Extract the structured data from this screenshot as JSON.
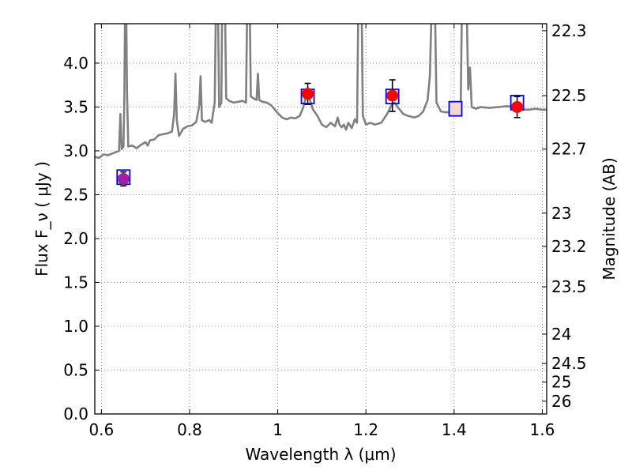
{
  "chart_data": {
    "type": "scatter",
    "title": "",
    "xlabel": "Wavelength  λ (μm)",
    "ylabel": "Flux  F_ν  ( μJy )",
    "ylabel_right": "Magnitude (AB)",
    "xlim": [
      0.585,
      1.61
    ],
    "ylim": [
      0.0,
      4.45
    ],
    "x_ticks": [
      0.6,
      0.8,
      1.0,
      1.2,
      1.4,
      1.6
    ],
    "x_tick_labels": [
      "0.6",
      "0.8",
      "1",
      "1.2",
      "1.4",
      "1.6"
    ],
    "y_ticks": [
      0.0,
      0.5,
      1.0,
      1.5,
      2.0,
      2.5,
      3.0,
      3.5,
      4.0
    ],
    "y_tick_labels": [
      "0.0",
      "0.5",
      "1.0",
      "1.5",
      "2.0",
      "2.5",
      "3.0",
      "3.5",
      "4.0"
    ],
    "right_ticks": [
      {
        "label": "22.3",
        "flux": 4.37
      },
      {
        "label": "22.5",
        "flux": 3.63
      },
      {
        "label": "22.7",
        "flux": 3.02
      },
      {
        "label": "23",
        "flux": 2.29
      },
      {
        "label": "23.2",
        "flux": 1.91
      },
      {
        "label": "23.5",
        "flux": 1.45
      },
      {
        "label": "24",
        "flux": 0.91
      },
      {
        "label": "24.5",
        "flux": 0.575
      },
      {
        "label": "25",
        "flux": 0.363
      },
      {
        "label": "26",
        "flux": 0.145
      }
    ],
    "grid": true,
    "model_spectrum": {
      "color": "#808080",
      "points": [
        [
          0.585,
          2.93
        ],
        [
          0.595,
          2.92
        ],
        [
          0.605,
          2.96
        ],
        [
          0.615,
          2.95
        ],
        [
          0.625,
          2.97
        ],
        [
          0.635,
          2.99
        ],
        [
          0.64,
          3.0
        ],
        [
          0.643,
          3.42
        ],
        [
          0.646,
          3.02
        ],
        [
          0.65,
          3.05
        ],
        [
          0.652,
          3.6
        ],
        [
          0.654,
          4.8
        ],
        [
          0.656,
          4.8
        ],
        [
          0.658,
          3.7
        ],
        [
          0.661,
          3.05
        ],
        [
          0.67,
          3.06
        ],
        [
          0.68,
          3.03
        ],
        [
          0.69,
          3.07
        ],
        [
          0.7,
          3.1
        ],
        [
          0.705,
          3.06
        ],
        [
          0.71,
          3.12
        ],
        [
          0.72,
          3.13
        ],
        [
          0.73,
          3.18
        ],
        [
          0.74,
          3.19
        ],
        [
          0.75,
          3.2
        ],
        [
          0.76,
          3.22
        ],
        [
          0.765,
          3.42
        ],
        [
          0.768,
          3.88
        ],
        [
          0.771,
          3.35
        ],
        [
          0.776,
          3.17
        ],
        [
          0.785,
          3.25
        ],
        [
          0.795,
          3.28
        ],
        [
          0.805,
          3.29
        ],
        [
          0.815,
          3.33
        ],
        [
          0.822,
          3.52
        ],
        [
          0.825,
          3.85
        ],
        [
          0.828,
          3.35
        ],
        [
          0.835,
          3.33
        ],
        [
          0.845,
          3.35
        ],
        [
          0.85,
          3.32
        ],
        [
          0.857,
          3.55
        ],
        [
          0.86,
          4.8
        ],
        [
          0.864,
          4.8
        ],
        [
          0.867,
          3.5
        ],
        [
          0.872,
          3.55
        ],
        [
          0.874,
          4.8
        ],
        [
          0.88,
          4.8
        ],
        [
          0.883,
          3.6
        ],
        [
          0.89,
          3.57
        ],
        [
          0.9,
          3.55
        ],
        [
          0.91,
          3.56
        ],
        [
          0.92,
          3.57
        ],
        [
          0.928,
          3.55
        ],
        [
          0.931,
          4.8
        ],
        [
          0.936,
          4.8
        ],
        [
          0.939,
          3.62
        ],
        [
          0.945,
          3.6
        ],
        [
          0.952,
          3.58
        ],
        [
          0.955,
          3.88
        ],
        [
          0.958,
          3.58
        ],
        [
          0.965,
          3.56
        ],
        [
          0.975,
          3.55
        ],
        [
          0.985,
          3.52
        ],
        [
          1.0,
          3.43
        ],
        [
          1.01,
          3.38
        ],
        [
          1.02,
          3.36
        ],
        [
          1.03,
          3.38
        ],
        [
          1.04,
          3.37
        ],
        [
          1.05,
          3.4
        ],
        [
          1.058,
          3.5
        ],
        [
          1.062,
          3.58
        ],
        [
          1.068,
          3.62
        ],
        [
          1.073,
          3.58
        ],
        [
          1.08,
          3.47
        ],
        [
          1.09,
          3.4
        ],
        [
          1.1,
          3.3
        ],
        [
          1.11,
          3.27
        ],
        [
          1.12,
          3.32
        ],
        [
          1.13,
          3.28
        ],
        [
          1.136,
          3.38
        ],
        [
          1.14,
          3.3
        ],
        [
          1.145,
          3.27
        ],
        [
          1.15,
          3.3
        ],
        [
          1.155,
          3.24
        ],
        [
          1.16,
          3.32
        ],
        [
          1.168,
          3.26
        ],
        [
          1.175,
          3.36
        ],
        [
          1.18,
          3.32
        ],
        [
          1.183,
          4.8
        ],
        [
          1.19,
          4.8
        ],
        [
          1.193,
          3.4
        ],
        [
          1.2,
          3.3
        ],
        [
          1.21,
          3.32
        ],
        [
          1.22,
          3.3
        ],
        [
          1.235,
          3.32
        ],
        [
          1.248,
          3.42
        ],
        [
          1.258,
          3.52
        ],
        [
          1.265,
          3.55
        ],
        [
          1.275,
          3.48
        ],
        [
          1.285,
          3.42
        ],
        [
          1.295,
          3.4
        ],
        [
          1.31,
          3.38
        ],
        [
          1.32,
          3.4
        ],
        [
          1.33,
          3.45
        ],
        [
          1.34,
          3.58
        ],
        [
          1.345,
          3.85
        ],
        [
          1.35,
          4.8
        ],
        [
          1.356,
          4.8
        ],
        [
          1.36,
          3.55
        ],
        [
          1.37,
          3.45
        ],
        [
          1.38,
          3.44
        ],
        [
          1.39,
          3.44
        ],
        [
          1.4,
          3.45
        ],
        [
          1.41,
          3.45
        ],
        [
          1.415,
          3.5
        ],
        [
          1.418,
          4.8
        ],
        [
          1.428,
          4.8
        ],
        [
          1.432,
          3.7
        ],
        [
          1.436,
          3.95
        ],
        [
          1.44,
          3.5
        ],
        [
          1.45,
          3.48
        ],
        [
          1.46,
          3.5
        ],
        [
          1.48,
          3.49
        ],
        [
          1.5,
          3.5
        ],
        [
          1.52,
          3.51
        ],
        [
          1.54,
          3.5
        ],
        [
          1.555,
          3.47
        ],
        [
          1.57,
          3.47
        ],
        [
          1.585,
          3.48
        ],
        [
          1.6,
          3.47
        ],
        [
          1.61,
          3.47
        ]
      ]
    },
    "observed_points": [
      {
        "x": 0.65,
        "y": 2.68,
        "err": 0.08,
        "color": "#a020a0"
      },
      {
        "x": 1.068,
        "y": 3.65,
        "err": 0.12,
        "color": "#ff0000"
      },
      {
        "x": 1.26,
        "y": 3.63,
        "err": 0.18,
        "color": "#ff0000"
      },
      {
        "x": 1.543,
        "y": 3.5,
        "err": 0.12,
        "color": "#ff0000"
      }
    ],
    "model_photometry": [
      {
        "x": 0.65,
        "y": 2.7,
        "fill": "none"
      },
      {
        "x": 1.068,
        "y": 3.62,
        "fill": "none"
      },
      {
        "x": 1.26,
        "y": 3.62,
        "fill": "none"
      },
      {
        "x": 1.403,
        "y": 3.48,
        "fill": "#f5d7d0"
      },
      {
        "x": 1.543,
        "y": 3.55,
        "fill": "none"
      }
    ],
    "colors": {
      "spectrum": "#808080",
      "model_box": "#0000ff",
      "errorbar": "#000000"
    }
  }
}
